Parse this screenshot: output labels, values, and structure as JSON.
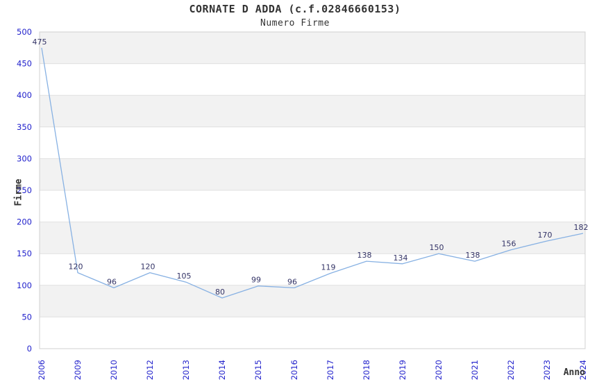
{
  "header": {
    "title": "CORNATE D ADDA (c.f.02846660153)",
    "subtitle": "Numero Firme"
  },
  "chart_data": {
    "type": "line",
    "title": "CORNATE D ADDA (c.f.02846660153)",
    "subtitle": "Numero Firme",
    "xlabel": "Anno",
    "ylabel": "Firme",
    "categories": [
      "2006",
      "2009",
      "2010",
      "2012",
      "2013",
      "2014",
      "2015",
      "2016",
      "2017",
      "2018",
      "2019",
      "2020",
      "2021",
      "2022",
      "2023",
      "2024"
    ],
    "values": [
      475,
      120,
      96,
      120,
      105,
      80,
      99,
      96,
      119,
      138,
      134,
      150,
      138,
      156,
      170,
      182
    ],
    "data_labels_shown": true,
    "ylim": [
      0,
      500
    ],
    "ytick_step": 50,
    "yticks": [
      0,
      50,
      100,
      150,
      200,
      250,
      300,
      350,
      400,
      450,
      500
    ],
    "grid": "horizontal-bands-alternating",
    "legend": "none",
    "markers": "none",
    "colors": {
      "line": "#87b1e3",
      "tick_label": "#2222cc",
      "data_label": "#333366",
      "band": "#f2f2f2",
      "gridline": "#e0e0e0",
      "plot_border": "#d0d0d0",
      "title": "#333333",
      "background": "#ffffff"
    }
  }
}
